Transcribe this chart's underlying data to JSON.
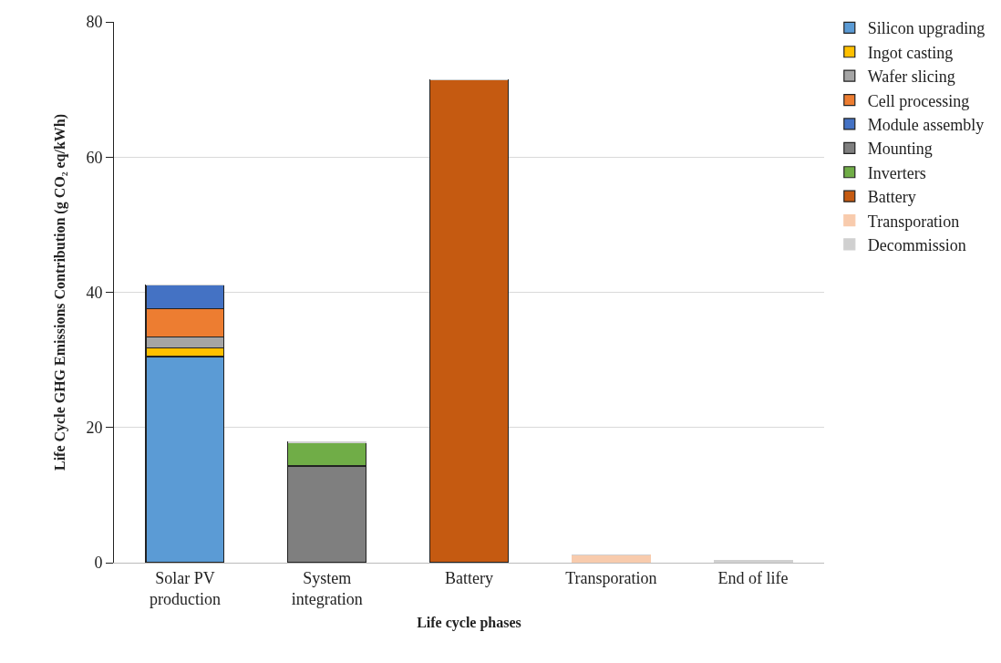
{
  "chart_data": {
    "type": "bar",
    "stacked": true,
    "xlabel": "Life cycle phases",
    "ylabel": "Life Cycle GHG Emissions Contribution (g CO₂ eq/kWh)",
    "categories": [
      "Solar PV production",
      "System integration",
      "Battery",
      "Transporation",
      "End of life"
    ],
    "series": [
      {
        "name": "Silicon upgrading",
        "color": "#5b9bd5",
        "values": [
          30.5,
          0,
          0,
          0,
          0
        ]
      },
      {
        "name": "Ingot casting",
        "color": "#ffc000",
        "values": [
          1.3,
          0,
          0,
          0,
          0
        ]
      },
      {
        "name": "Wafer slicing",
        "color": "#a5a5a5",
        "values": [
          1.6,
          0,
          0,
          0,
          0
        ]
      },
      {
        "name": "Cell processing",
        "color": "#ed7d31",
        "values": [
          4.2,
          0,
          0,
          0,
          0
        ]
      },
      {
        "name": "Module assembly",
        "color": "#4472c4",
        "values": [
          3.5,
          0,
          0,
          0,
          0
        ]
      },
      {
        "name": "Mounting",
        "color": "#7f7f7f",
        "values": [
          0,
          14.3,
          0,
          0,
          0
        ]
      },
      {
        "name": "Inverters",
        "color": "#70ad47",
        "values": [
          0,
          3.5,
          0,
          0,
          0
        ]
      },
      {
        "name": "Battery",
        "color": "#c55a11",
        "values": [
          0,
          0,
          71.4,
          0,
          0
        ]
      },
      {
        "name": "Transporation",
        "color": "#f8cbad",
        "values": [
          0,
          0,
          0,
          1.1,
          0
        ]
      },
      {
        "name": "Decommission",
        "color": "#d0d0d0",
        "values": [
          0,
          0,
          0,
          0,
          0.3
        ]
      }
    ],
    "ylim": [
      0,
      80
    ],
    "yticks": [
      0,
      20,
      40,
      60,
      80
    ],
    "grid": "y",
    "legend": "right"
  }
}
